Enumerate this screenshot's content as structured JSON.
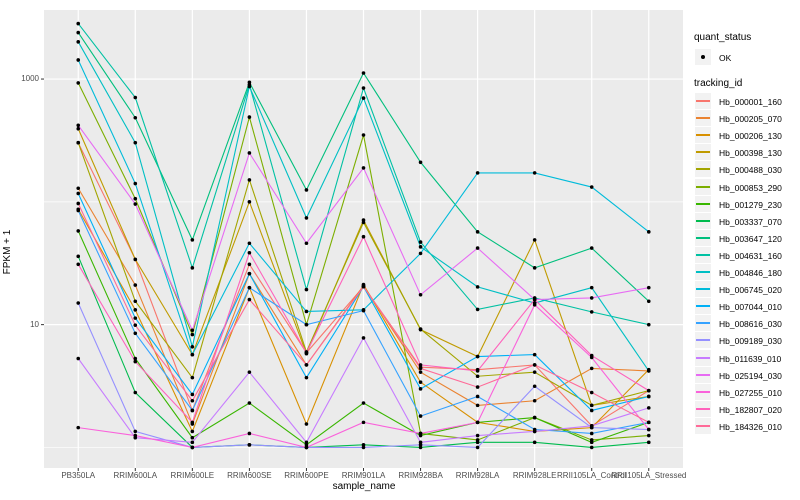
{
  "chart_data": {
    "type": "line",
    "title": "",
    "xlabel": "sample_name",
    "ylabel": "FPKM + 1",
    "y_scale": "log10",
    "ylim": [
      0.68,
      3650
    ],
    "y_ticks": [
      {
        "value": 10,
        "label": "10"
      },
      {
        "value": 1000,
        "label": "1000"
      }
    ],
    "y_minor_gridlines": [
      1,
      100
    ],
    "panel_bg": "#EBEBEB",
    "grid_color": "#FFFFFF",
    "point_color": "#000000",
    "tick_color": "#333333",
    "tick_label_color": "#4D4D4D",
    "categories": [
      "PB350LA",
      "RRIM600LA",
      "RRIM600LE",
      "RRIM600SE",
      "RRIM600PE",
      "RRIM901LA",
      "RRIM928BA",
      "RRIM928LA",
      "RRIM928LE",
      "RRII105LA_Control",
      "RRII105LA_Stressed"
    ],
    "series": [
      {
        "name": "Hb_000001_160",
        "color": "#F8766D",
        "values": [
          303,
          34,
          2.0,
          31,
          5.9,
          20.4,
          4.5,
          4.3,
          4.7,
          1.5,
          2.9
        ]
      },
      {
        "name": "Hb_000205_070",
        "color": "#EA8331",
        "values": [
          129,
          21,
          1.55,
          26,
          4.7,
          20.8,
          4.1,
          2.2,
          2.4,
          4.4,
          4.2
        ]
      },
      {
        "name": "Hb_000206_130",
        "color": "#D89000",
        "values": [
          87,
          13.2,
          1.35,
          20,
          1.55,
          21.2,
          3.4,
          1.6,
          1.35,
          1.45,
          4.3
        ]
      },
      {
        "name": "Hb_000398_130",
        "color": "#C09B00",
        "values": [
          394,
          34,
          5.7,
          100,
          5.8,
          71,
          9.1,
          5.5,
          49,
          2.2,
          2.6
        ]
      },
      {
        "name": "Hb_000488_030",
        "color": "#A3A500",
        "values": [
          303,
          15.5,
          3.7,
          151,
          6.0,
          68,
          9.2,
          3.8,
          4.1,
          2.2,
          2.9
        ]
      },
      {
        "name": "Hb_000853_290",
        "color": "#7CAE00",
        "values": [
          930,
          106,
          8.3,
          490,
          10,
          350,
          1.3,
          1.15,
          1.75,
          1.15,
          1.25
        ]
      },
      {
        "name": "Hb_001279_230",
        "color": "#39B600",
        "values": [
          58,
          5.3,
          1.2,
          2.3,
          1.05,
          2.3,
          1.25,
          1.6,
          1.75,
          1.1,
          1.6
        ]
      },
      {
        "name": "Hb_003337_070",
        "color": "#00BB4E",
        "values": [
          36,
          2.8,
          1.0,
          1.05,
          1.0,
          1.05,
          1.0,
          1.1,
          1.1,
          1.0,
          1.1
        ]
      },
      {
        "name": "Hb_003647_120",
        "color": "#00BF7D",
        "values": [
          2390,
          484,
          49,
          940,
          125,
          1120,
          210,
          57,
          29,
          42,
          15.5
        ]
      },
      {
        "name": "Hb_004631_160",
        "color": "#00C1A3",
        "values": [
          2830,
          707,
          29,
          900,
          19.3,
          845,
          47,
          13.3,
          16.5,
          12.7,
          10
        ]
      },
      {
        "name": "Hb_004846_180",
        "color": "#00BFC4",
        "values": [
          2010,
          303,
          6.6,
          870,
          74,
          700,
          43,
          20.3,
          15,
          20,
          4.2
        ]
      },
      {
        "name": "Hb_006745_020",
        "color": "#00BBDA",
        "values": [
          1430,
          141,
          5.7,
          46,
          12.8,
          13.2,
          38,
          172,
          172,
          132,
          57
        ]
      },
      {
        "name": "Hb_007044_010",
        "color": "#00B0F6",
        "values": [
          117,
          11.3,
          2.7,
          26,
          3.7,
          20.4,
          3.0,
          5.5,
          5.7,
          2.0,
          2.6
        ]
      },
      {
        "name": "Hb_008616_030",
        "color": "#35A2FF",
        "values": [
          85,
          8.5,
          2.0,
          20,
          10,
          13,
          1.8,
          2.6,
          1.4,
          1.3,
          1.6
        ]
      },
      {
        "name": "Hb_009189_030",
        "color": "#9590FF",
        "values": [
          15,
          1.35,
          1.0,
          1.05,
          1.0,
          1.0,
          1.05,
          1.0,
          3.15,
          1.45,
          1.4
        ]
      },
      {
        "name": "Hb_011639_010",
        "color": "#C77CFF",
        "values": [
          5.3,
          1.2,
          1.1,
          4.1,
          1.1,
          7.8,
          1.1,
          1.25,
          1.35,
          1.5,
          2.1
        ]
      },
      {
        "name": "Hb_025194_030",
        "color": "#E76BF3",
        "values": [
          420,
          96,
          9.0,
          250,
          46,
          189,
          17.5,
          42,
          16,
          16.5,
          20
        ]
      },
      {
        "name": "Hb_027255_010",
        "color": "#FA62DB",
        "values": [
          1.45,
          1.25,
          1.0,
          1.3,
          1.0,
          1.6,
          1.3,
          1.6,
          14.5,
          5.4,
          1.4
        ]
      },
      {
        "name": "Hb_182807_020",
        "color": "#FF62BC",
        "values": [
          31,
          5.0,
          1.6,
          38.5,
          5.9,
          52,
          4.7,
          4.2,
          16,
          5.6,
          2.9
        ]
      },
      {
        "name": "Hb_184326_010",
        "color": "#FF6A98",
        "values": [
          97,
          9.9,
          2.4,
          16,
          4.7,
          20.4,
          4.4,
          3.1,
          4.7,
          2.8,
          1.6
        ]
      }
    ]
  },
  "legend": {
    "quant_status": {
      "title": "quant_status",
      "items": [
        {
          "label": "OK",
          "symbol": "black-point"
        }
      ]
    },
    "tracking_id": {
      "title": "tracking_id"
    }
  }
}
